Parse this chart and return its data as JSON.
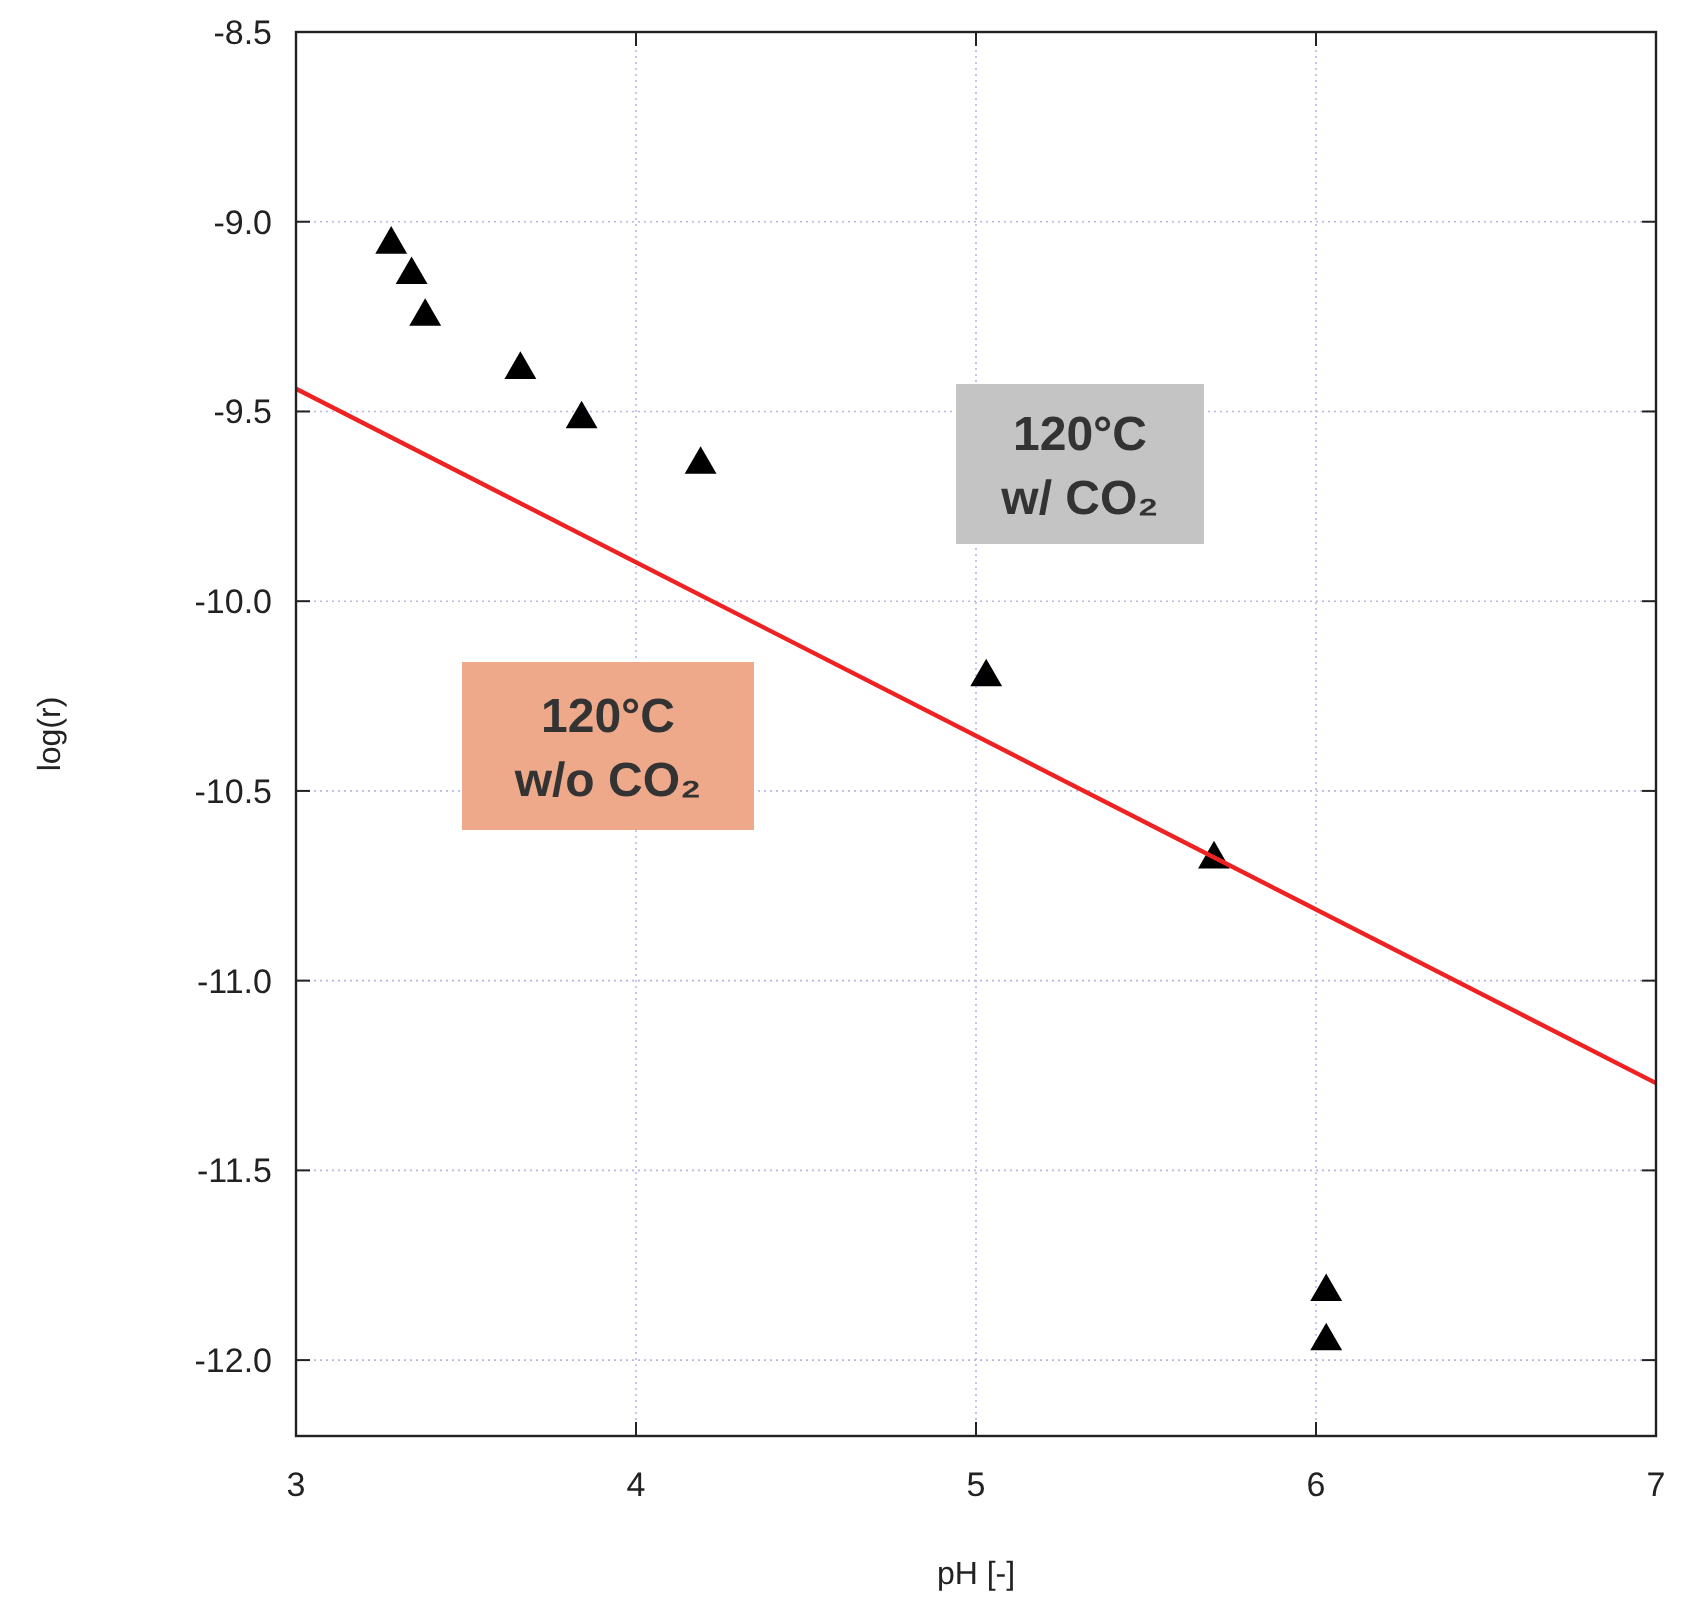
{
  "chart_data": {
    "type": "scatter",
    "xlabel": "pH [-]",
    "ylabel": "log(r)",
    "xlim": [
      3,
      7
    ],
    "ylim": [
      -12.2,
      -8.5
    ],
    "xticks": [
      3,
      4,
      5,
      6,
      7
    ],
    "yticks": [
      {
        "value": -8.5,
        "label": "-8.5"
      },
      {
        "value": -9,
        "label": "-9.0"
      },
      {
        "value": -9.5,
        "label": "-9.5"
      },
      {
        "value": -10,
        "label": "-10.0"
      },
      {
        "value": -10.5,
        "label": "-10.5"
      },
      {
        "value": -11,
        "label": "-11.0"
      },
      {
        "value": -11.5,
        "label": "-11.5"
      },
      {
        "value": -12,
        "label": "-12.0"
      }
    ],
    "grid": true,
    "annotations": [
      "120°C\nw/ CO₂",
      "120°C\nw/o CO₂"
    ],
    "series": [
      {
        "color": "#000000",
        "marker": "triangle",
        "x": [
          3.28,
          3.34,
          3.38,
          3.66,
          3.84,
          4.19,
          5.03,
          5.7,
          6.03,
          6.03
        ],
        "values": [
          -9.06,
          -9.14,
          -9.25,
          -9.39,
          -9.52,
          -9.64,
          -10.2,
          -10.68,
          -11.82,
          -11.95
        ]
      },
      {
        "type": "line",
        "color": "#ee2222",
        "line_style": "solid",
        "x": [
          3,
          7
        ],
        "values": [
          -9.44,
          -11.27
        ]
      }
    ]
  }
}
